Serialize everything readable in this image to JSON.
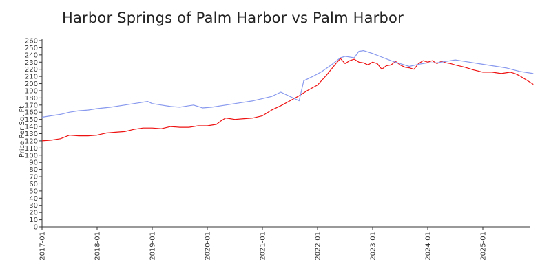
{
  "title": "Harbor Springs of Palm Harbor vs Palm Harbor",
  "chart_data": {
    "type": "line",
    "title": "Harbor Springs of Palm Harbor vs Palm Harbor",
    "xlabel": "",
    "ylabel": "Price Per Sq. Ft",
    "ylim": [
      0,
      260
    ],
    "yticks": [
      0,
      10,
      20,
      30,
      40,
      50,
      60,
      70,
      80,
      90,
      100,
      110,
      120,
      130,
      140,
      150,
      160,
      170,
      180,
      190,
      200,
      210,
      220,
      230,
      240,
      250,
      260
    ],
    "xlim": [
      "2017-01",
      "2025-10"
    ],
    "xticks": [
      "2017-01",
      "2018-01",
      "2019-01",
      "2020-01",
      "2021-01",
      "2022-01",
      "2023-01",
      "2024-01",
      "2025-01"
    ],
    "grid": false,
    "legend": "none",
    "series": [
      {
        "color": "#ee1111",
        "points": [
          [
            "2017-01",
            120
          ],
          [
            "2017-03",
            121
          ],
          [
            "2017-05",
            123
          ],
          [
            "2017-07",
            128
          ],
          [
            "2017-09",
            127
          ],
          [
            "2017-11",
            127
          ],
          [
            "2018-01",
            128
          ],
          [
            "2018-03",
            131
          ],
          [
            "2018-05",
            132
          ],
          [
            "2018-07",
            133
          ],
          [
            "2018-09",
            136
          ],
          [
            "2018-11",
            138
          ],
          [
            "2019-01",
            138
          ],
          [
            "2019-03",
            137
          ],
          [
            "2019-05",
            140
          ],
          [
            "2019-07",
            139
          ],
          [
            "2019-09",
            139
          ],
          [
            "2019-11",
            141
          ],
          [
            "2020-01",
            141
          ],
          [
            "2020-03",
            143
          ],
          [
            "2020-04",
            148
          ],
          [
            "2020-05",
            152
          ],
          [
            "2020-07",
            150
          ],
          [
            "2020-09",
            151
          ],
          [
            "2020-11",
            152
          ],
          [
            "2021-01",
            155
          ],
          [
            "2021-03",
            163
          ],
          [
            "2021-05",
            169
          ],
          [
            "2021-07",
            176
          ],
          [
            "2021-09",
            183
          ],
          [
            "2021-11",
            191
          ],
          [
            "2022-01",
            198
          ],
          [
            "2022-03",
            212
          ],
          [
            "2022-05",
            228
          ],
          [
            "2022-06",
            235
          ],
          [
            "2022-07",
            228
          ],
          [
            "2022-08",
            232
          ],
          [
            "2022-09",
            234
          ],
          [
            "2022-10",
            230
          ],
          [
            "2022-11",
            229
          ],
          [
            "2022-12",
            226
          ],
          [
            "2023-01",
            230
          ],
          [
            "2023-02",
            228
          ],
          [
            "2023-03",
            220
          ],
          [
            "2023-04",
            225
          ],
          [
            "2023-05",
            226
          ],
          [
            "2023-06",
            231
          ],
          [
            "2023-07",
            226
          ],
          [
            "2023-08",
            223
          ],
          [
            "2023-09",
            222
          ],
          [
            "2023-10",
            220
          ],
          [
            "2023-11",
            228
          ],
          [
            "2023-12",
            232
          ],
          [
            "2024-01",
            230
          ],
          [
            "2024-02",
            232
          ],
          [
            "2024-03",
            228
          ],
          [
            "2024-04",
            231
          ],
          [
            "2024-05",
            229
          ],
          [
            "2024-06",
            228
          ],
          [
            "2024-07",
            226
          ],
          [
            "2024-09",
            223
          ],
          [
            "2024-11",
            219
          ],
          [
            "2025-01",
            216
          ],
          [
            "2025-03",
            216
          ],
          [
            "2025-05",
            214
          ],
          [
            "2025-07",
            216
          ],
          [
            "2025-08",
            214
          ],
          [
            "2025-09",
            211
          ],
          [
            "2025-10",
            207
          ],
          [
            "2025-11",
            203
          ],
          [
            "2025-12",
            199
          ]
        ]
      },
      {
        "color": "#8899ee",
        "points": [
          [
            "2017-01",
            153
          ],
          [
            "2017-03",
            155
          ],
          [
            "2017-05",
            157
          ],
          [
            "2017-07",
            160
          ],
          [
            "2017-09",
            162
          ],
          [
            "2017-11",
            163
          ],
          [
            "2018-01",
            165
          ],
          [
            "2018-04",
            167
          ],
          [
            "2018-07",
            170
          ],
          [
            "2018-10",
            173
          ],
          [
            "2018-12",
            175
          ],
          [
            "2019-01",
            172
          ],
          [
            "2019-03",
            170
          ],
          [
            "2019-05",
            168
          ],
          [
            "2019-07",
            167
          ],
          [
            "2019-09",
            169
          ],
          [
            "2019-10",
            170
          ],
          [
            "2019-12",
            166
          ],
          [
            "2020-02",
            167
          ],
          [
            "2020-05",
            170
          ],
          [
            "2020-08",
            173
          ],
          [
            "2020-11",
            176
          ],
          [
            "2021-01",
            179
          ],
          [
            "2021-03",
            182
          ],
          [
            "2021-05",
            188
          ],
          [
            "2021-07",
            182
          ],
          [
            "2021-09",
            176
          ],
          [
            "2021-10",
            204
          ],
          [
            "2021-12",
            210
          ],
          [
            "2022-02",
            217
          ],
          [
            "2022-04",
            226
          ],
          [
            "2022-06",
            236
          ],
          [
            "2022-07",
            238
          ],
          [
            "2022-09",
            236
          ],
          [
            "2022-10",
            245
          ],
          [
            "2022-11",
            246
          ],
          [
            "2023-01",
            242
          ],
          [
            "2023-03",
            237
          ],
          [
            "2023-05",
            232
          ],
          [
            "2023-07",
            228
          ],
          [
            "2023-09",
            224
          ],
          [
            "2023-11",
            227
          ],
          [
            "2024-01",
            229
          ],
          [
            "2024-03",
            229
          ],
          [
            "2024-05",
            231
          ],
          [
            "2024-07",
            233
          ],
          [
            "2024-09",
            231
          ],
          [
            "2024-12",
            228
          ],
          [
            "2025-03",
            225
          ],
          [
            "2025-06",
            222
          ],
          [
            "2025-09",
            217
          ],
          [
            "2025-12",
            214
          ]
        ]
      }
    ]
  }
}
